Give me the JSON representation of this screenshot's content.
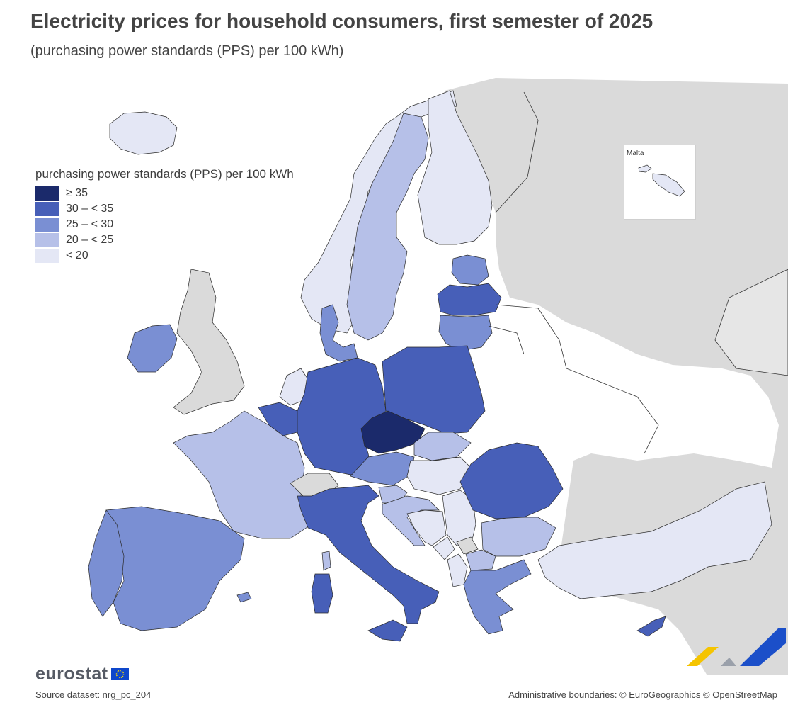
{
  "title": "Electricity prices for household consumers, first semester of 2025",
  "subtitle": "(purchasing power standards (PPS) per 100 kWh)",
  "legend": {
    "title": "purchasing power standards (PPS) per 100 kWh",
    "classes": [
      {
        "label": "≥ 35",
        "color": "#1b2a6b"
      },
      {
        "label": "30 – < 35",
        "color": "#475fb8"
      },
      {
        "label": "25 – < 30",
        "color": "#7a8fd3"
      },
      {
        "label": "20 – < 25",
        "color": "#b6c0e8"
      },
      {
        "label": "< 20",
        "color": "#e4e7f5"
      }
    ]
  },
  "map_data": {
    "no_data_color": "#dadada",
    "regions": [
      {
        "name": "Czechia",
        "class": 0
      },
      {
        "name": "Germany",
        "class": 1
      },
      {
        "name": "Poland",
        "class": 1
      },
      {
        "name": "Belgium",
        "class": 1
      },
      {
        "name": "Italy",
        "class": 1
      },
      {
        "name": "Latvia",
        "class": 1
      },
      {
        "name": "Romania",
        "class": 1
      },
      {
        "name": "Cyprus",
        "class": 1
      },
      {
        "name": "Spain",
        "class": 2
      },
      {
        "name": "Portugal",
        "class": 2
      },
      {
        "name": "Ireland",
        "class": 2
      },
      {
        "name": "Denmark",
        "class": 2
      },
      {
        "name": "Lithuania",
        "class": 2
      },
      {
        "name": "Estonia",
        "class": 2
      },
      {
        "name": "Austria",
        "class": 2
      },
      {
        "name": "Greece",
        "class": 2
      },
      {
        "name": "France",
        "class": 3
      },
      {
        "name": "Sweden",
        "class": 3
      },
      {
        "name": "Slovakia",
        "class": 3
      },
      {
        "name": "Slovenia",
        "class": 3
      },
      {
        "name": "Croatia",
        "class": 3
      },
      {
        "name": "Bulgaria",
        "class": 3
      },
      {
        "name": "North Macedonia",
        "class": 3
      },
      {
        "name": "Finland",
        "class": 4
      },
      {
        "name": "Norway",
        "class": 4
      },
      {
        "name": "Iceland",
        "class": 4
      },
      {
        "name": "Netherlands",
        "class": 4
      },
      {
        "name": "Hungary",
        "class": 4
      },
      {
        "name": "Türkiye",
        "class": 4
      },
      {
        "name": "Bosnia and Herzegovina",
        "class": 4
      },
      {
        "name": "Serbia",
        "class": 4
      },
      {
        "name": "Montenegro",
        "class": 4
      },
      {
        "name": "Albania",
        "class": 4
      },
      {
        "name": "Malta",
        "class": 4
      },
      {
        "name": "United Kingdom",
        "class": null
      },
      {
        "name": "Switzerland",
        "class": null
      },
      {
        "name": "Kosovo",
        "class": null
      }
    ]
  },
  "inset": {
    "label": "Malta"
  },
  "footer": {
    "logo": "eurostat",
    "source": "Source dataset: nrg_pc_204",
    "credits": "Administrative boundaries: © EuroGeographics © OpenStreetMap"
  }
}
